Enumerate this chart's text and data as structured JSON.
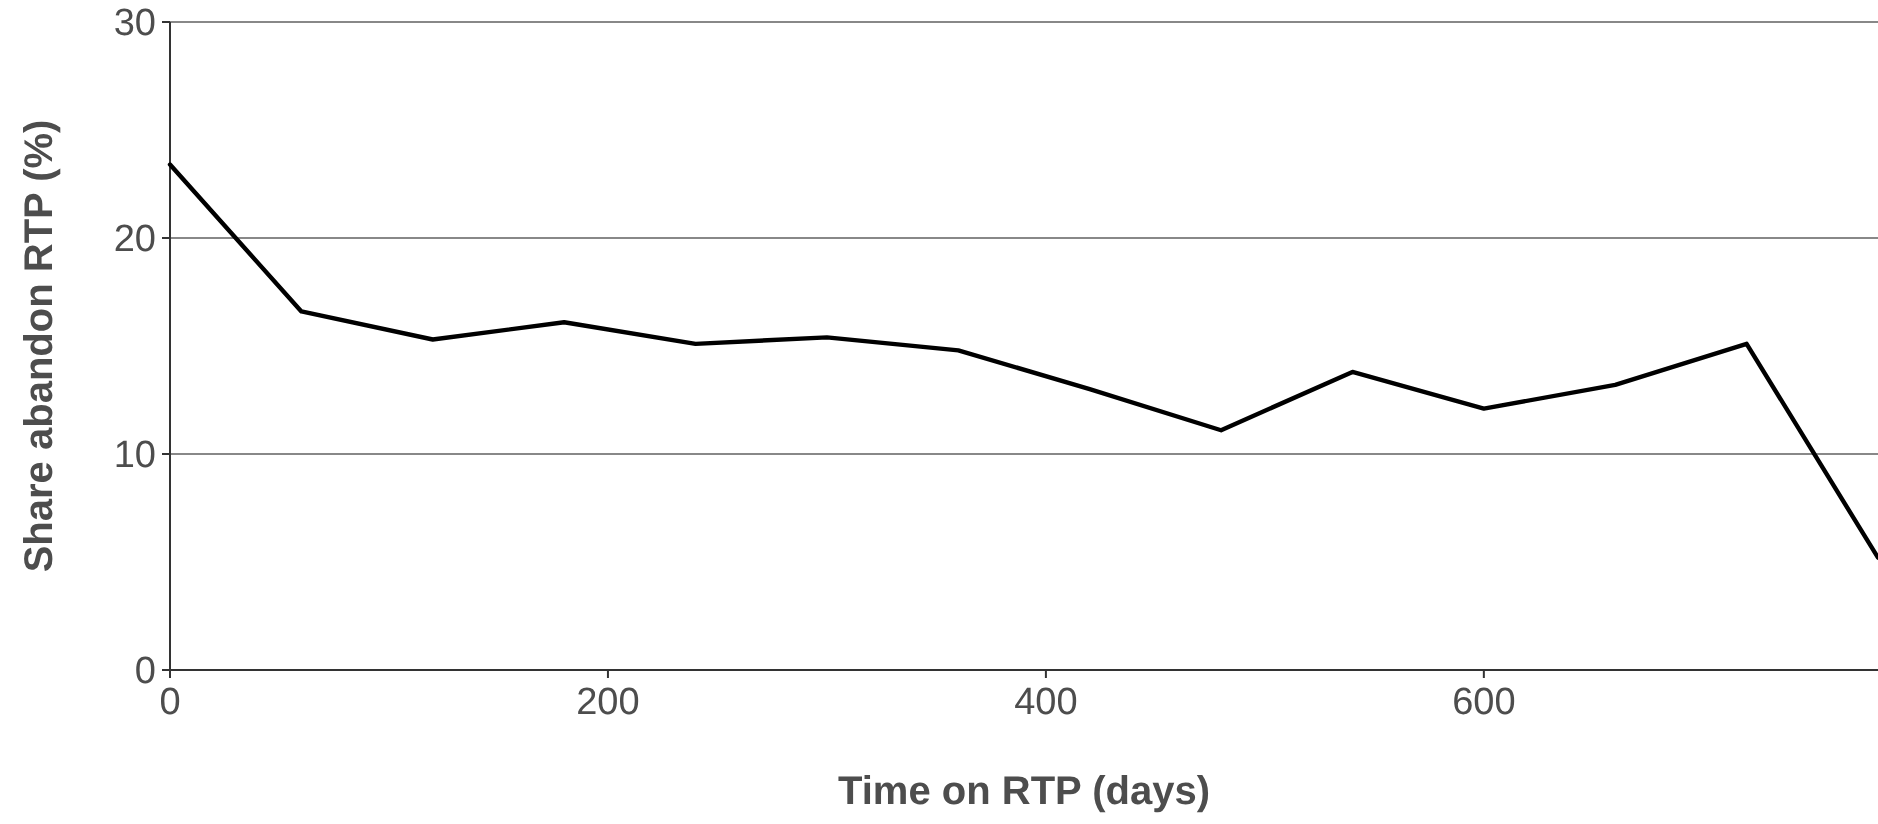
{
  "chart_data": {
    "type": "line",
    "xlabel": "Time on RTP (days)",
    "ylabel": "Share abandon RTP (%)",
    "x": [
      0,
      60,
      120,
      180,
      240,
      300,
      360,
      420,
      480,
      540,
      600,
      660,
      720,
      780
    ],
    "series": [
      {
        "color": "#000000",
        "values": [
          23.4,
          16.6,
          15.3,
          16.1,
          15.1,
          15.4,
          14.8,
          13.0,
          11.1,
          13.8,
          12.1,
          13.2,
          15.1,
          5.2
        ]
      }
    ],
    "xlim": [
      0,
      780
    ],
    "xticks": [
      0,
      200,
      400,
      600
    ],
    "ylim": [
      0,
      30
    ],
    "yticks": [
      0,
      10,
      20,
      30
    ],
    "grid": "y",
    "line_style": "solid",
    "marker": "none"
  }
}
